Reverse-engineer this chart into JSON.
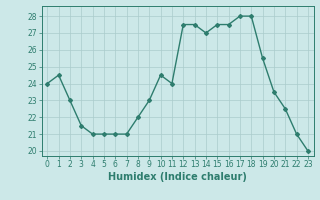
{
  "x": [
    0,
    1,
    2,
    3,
    4,
    5,
    6,
    7,
    8,
    9,
    10,
    11,
    12,
    13,
    14,
    15,
    16,
    17,
    18,
    19,
    20,
    21,
    22,
    23
  ],
  "y": [
    24.0,
    24.5,
    23.0,
    21.5,
    21.0,
    21.0,
    21.0,
    21.0,
    22.0,
    23.0,
    24.5,
    24.0,
    27.5,
    27.5,
    27.0,
    27.5,
    27.5,
    28.0,
    28.0,
    25.5,
    23.5,
    22.5,
    21.0,
    20.0
  ],
  "line_color": "#2e7d6e",
  "marker": "D",
  "marker_size": 2,
  "line_width": 1.0,
  "bg_color": "#cce8e8",
  "grid_color": "#aacccc",
  "xlabel": "Humidex (Indice chaleur)",
  "ylim": [
    19.7,
    28.6
  ],
  "yticks": [
    20,
    21,
    22,
    23,
    24,
    25,
    26,
    27,
    28
  ],
  "xlim": [
    -0.5,
    23.5
  ],
  "xticks": [
    0,
    1,
    2,
    3,
    4,
    5,
    6,
    7,
    8,
    9,
    10,
    11,
    12,
    13,
    14,
    15,
    16,
    17,
    18,
    19,
    20,
    21,
    22,
    23
  ],
  "tick_fontsize": 5.5,
  "label_fontsize": 7.0
}
